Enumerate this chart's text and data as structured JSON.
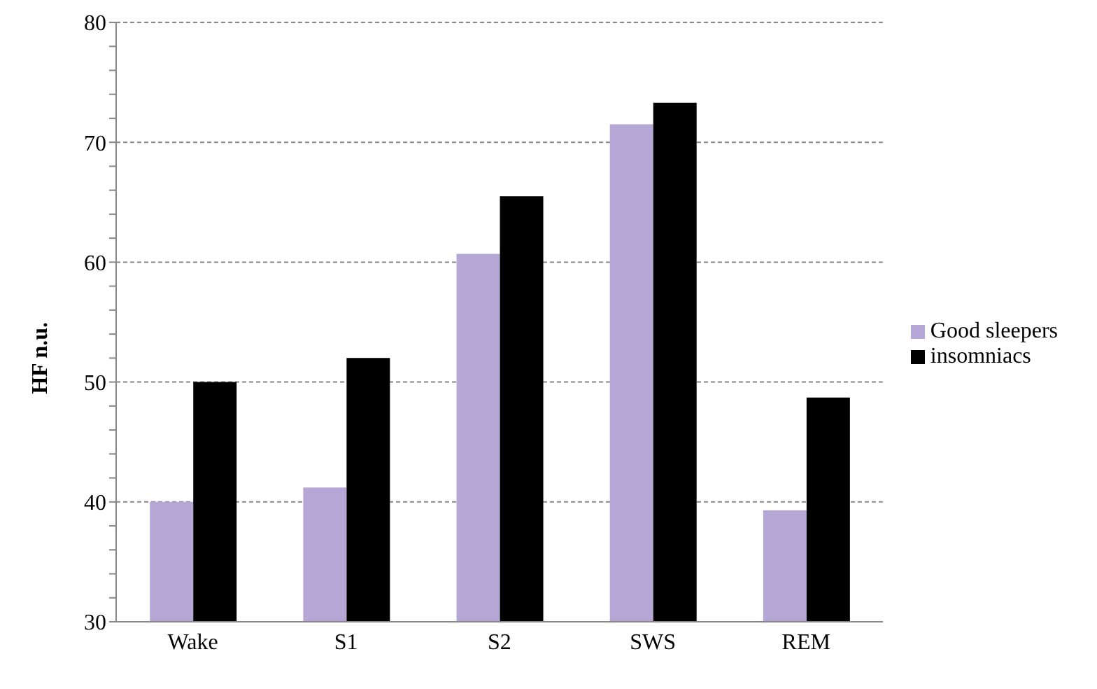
{
  "chart_data": {
    "type": "bar",
    "ylabel": "HF n.u.",
    "categories": [
      "Wake",
      "S1",
      "S2",
      "SWS",
      "REM"
    ],
    "series": [
      {
        "name": "Good sleepers",
        "color": "#b4a7d6",
        "values": [
          40,
          41.2,
          60.7,
          71.5,
          39.3
        ]
      },
      {
        "name": "insomniacs",
        "color": "#000000",
        "values": [
          50,
          52,
          65.5,
          73.3,
          48.7
        ]
      }
    ],
    "ylim": [
      30,
      80
    ],
    "yticks": [
      30,
      {
        "value": 32,
        "label": null
      },
      {
        "value": 34,
        "label": null
      },
      {
        "value": 36,
        "label": null
      },
      {
        "value": 38,
        "label": null
      },
      40,
      {
        "value": 42,
        "label": null
      },
      {
        "value": 44,
        "label": null
      },
      {
        "value": 46,
        "label": null
      },
      {
        "value": 48,
        "label": null
      },
      50,
      {
        "value": 52,
        "label": null
      },
      {
        "value": 54,
        "label": null
      },
      {
        "value": 56,
        "label": null
      },
      {
        "value": 58,
        "label": null
      },
      60,
      {
        "value": 62,
        "label": null
      },
      {
        "value": 64,
        "label": null
      },
      {
        "value": 66,
        "label": null
      },
      {
        "value": 68,
        "label": null
      },
      70,
      {
        "value": 72,
        "label": null
      },
      {
        "value": 74,
        "label": null
      },
      {
        "value": 76,
        "label": null
      },
      {
        "value": 78,
        "label": null
      },
      80
    ],
    "grid": "y",
    "legend": "right"
  }
}
